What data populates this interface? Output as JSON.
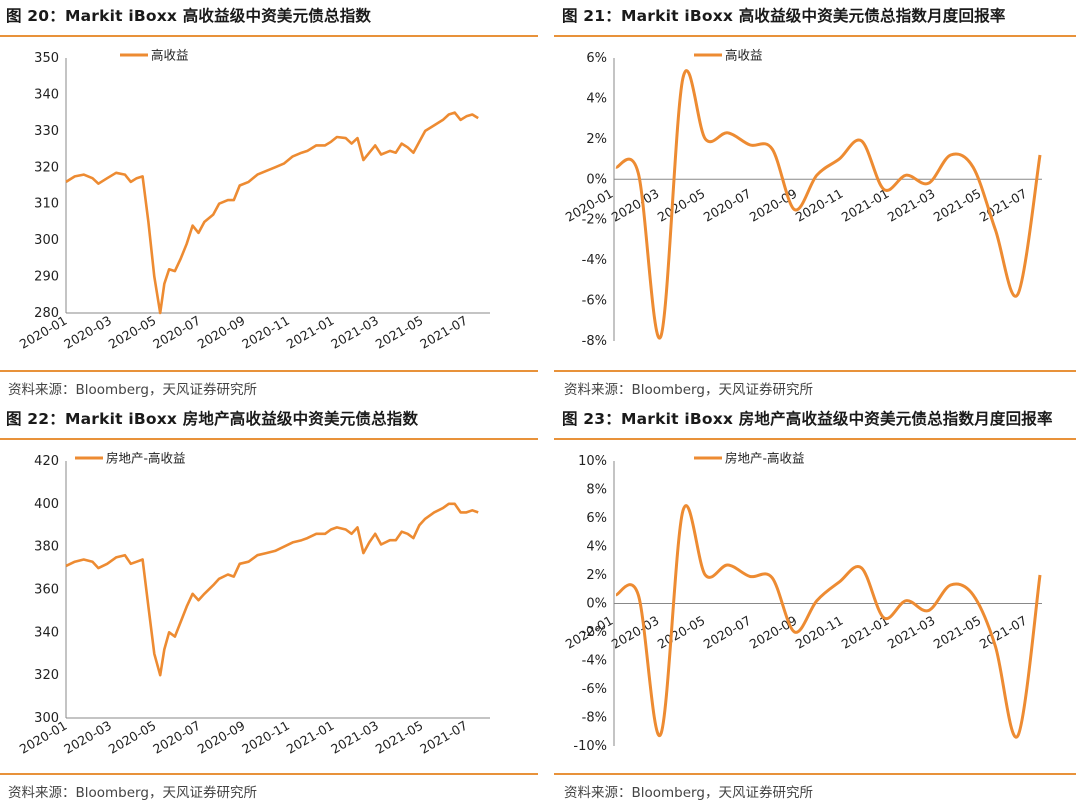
{
  "panels": [
    {
      "title": "图 20：Markit iBoxx 高收益级中资美元债总指数",
      "source": "资料来源：Bloomberg，天风证券研究所"
    },
    {
      "title": "图 21：Markit iBoxx 高收益级中资美元债总指数月度回报率",
      "source": "资料来源：Bloomberg，天风证券研究所"
    },
    {
      "title": "图 22：Markit iBoxx 房地产高收益级中资美元债总指数",
      "source": "资料来源：Bloomberg，天风证券研究所"
    },
    {
      "title": "图 23：Markit iBoxx 房地产高收益级中资美元债总指数月度回报率",
      "source": "资料来源：Bloomberg，天风证券研究所"
    }
  ],
  "chart_data": [
    {
      "type": "line",
      "series": [
        {
          "name": "高收益",
          "color": "#ed8b32"
        }
      ],
      "x_ticks": [
        "2020-01",
        "2020-03",
        "2020-05",
        "2020-07",
        "2020-09",
        "2020-11",
        "2021-01",
        "2021-03",
        "2021-05",
        "2021-07"
      ],
      "y_ticks": [
        "280",
        "290",
        "300",
        "310",
        "320",
        "330",
        "340",
        "350"
      ],
      "ylim": [
        280,
        350
      ],
      "xlim": [
        0,
        7.2
      ],
      "points": [
        [
          0,
          316
        ],
        [
          0.15,
          317.5
        ],
        [
          0.3,
          318
        ],
        [
          0.45,
          317
        ],
        [
          0.55,
          315.5
        ],
        [
          0.7,
          317
        ],
        [
          0.85,
          318.5
        ],
        [
          1.0,
          318
        ],
        [
          1.1,
          316
        ],
        [
          1.2,
          317
        ],
        [
          1.3,
          317.5
        ],
        [
          1.4,
          305
        ],
        [
          1.5,
          290
        ],
        [
          1.6,
          280
        ],
        [
          1.67,
          288
        ],
        [
          1.75,
          292
        ],
        [
          1.85,
          291.5
        ],
        [
          1.95,
          295
        ],
        [
          2.05,
          299
        ],
        [
          2.15,
          304
        ],
        [
          2.25,
          302
        ],
        [
          2.35,
          305
        ],
        [
          2.5,
          307
        ],
        [
          2.6,
          310
        ],
        [
          2.75,
          311
        ],
        [
          2.85,
          311
        ],
        [
          2.95,
          315
        ],
        [
          3.1,
          316
        ],
        [
          3.25,
          318
        ],
        [
          3.4,
          319
        ],
        [
          3.55,
          320
        ],
        [
          3.7,
          321
        ],
        [
          3.85,
          323
        ],
        [
          4.0,
          324
        ],
        [
          4.1,
          324.5
        ],
        [
          4.25,
          326
        ],
        [
          4.4,
          326
        ],
        [
          4.5,
          327
        ],
        [
          4.6,
          328.3
        ],
        [
          4.75,
          328
        ],
        [
          4.85,
          326.5
        ],
        [
          4.95,
          328
        ],
        [
          5.05,
          322
        ],
        [
          5.15,
          324
        ],
        [
          5.25,
          326
        ],
        [
          5.35,
          323.5
        ],
        [
          5.5,
          324.5
        ],
        [
          5.6,
          324
        ],
        [
          5.7,
          326.5
        ],
        [
          5.8,
          325.5
        ],
        [
          5.9,
          324
        ],
        [
          6.0,
          327
        ],
        [
          6.1,
          330
        ],
        [
          6.25,
          331.5
        ],
        [
          6.4,
          333
        ],
        [
          6.5,
          334.5
        ],
        [
          6.6,
          335
        ],
        [
          6.7,
          333
        ],
        [
          6.8,
          334
        ],
        [
          6.9,
          334.5
        ],
        [
          7.0,
          333.5
        ]
      ]
    },
    {
      "type": "line",
      "series": [
        {
          "name": "高收益",
          "color": "#ed8b32"
        }
      ],
      "x_ticks": [
        "2020-01",
        "2020-03",
        "2020-05",
        "2020-07",
        "2020-09",
        "2020-11",
        "2021-01",
        "2021-03",
        "2021-05",
        "2021-07"
      ],
      "y_ticks": [
        "-8%",
        "-6%",
        "-4%",
        "-2%",
        "0%",
        "2%",
        "4%",
        "6%"
      ],
      "ylim": [
        -8,
        6
      ],
      "x": [
        0,
        1,
        2,
        3,
        4,
        5,
        6,
        7,
        8,
        9,
        10,
        11,
        12,
        13,
        14,
        15,
        16,
        17,
        18,
        19
      ],
      "values": [
        0.6,
        0.3,
        -7.8,
        5.0,
        2.0,
        2.3,
        1.7,
        1.5,
        -1.5,
        0.2,
        1.0,
        1.9,
        -0.5,
        0.2,
        -0.2,
        1.2,
        0.6,
        -2.5,
        -5.7,
        1.2
      ]
    },
    {
      "type": "line",
      "series": [
        {
          "name": "房地产-高收益",
          "color": "#ed8b32"
        }
      ],
      "x_ticks": [
        "2020-01",
        "2020-03",
        "2020-05",
        "2020-07",
        "2020-09",
        "2020-11",
        "2021-01",
        "2021-03",
        "2021-05",
        "2021-07"
      ],
      "y_ticks": [
        "300",
        "320",
        "340",
        "360",
        "380",
        "400",
        "420"
      ],
      "ylim": [
        300,
        420
      ],
      "xlim": [
        0,
        7.2
      ],
      "points": [
        [
          0,
          371
        ],
        [
          0.15,
          373
        ],
        [
          0.3,
          374
        ],
        [
          0.45,
          373
        ],
        [
          0.55,
          370
        ],
        [
          0.7,
          372
        ],
        [
          0.85,
          375
        ],
        [
          1.0,
          376
        ],
        [
          1.1,
          372
        ],
        [
          1.2,
          373
        ],
        [
          1.3,
          374
        ],
        [
          1.4,
          352
        ],
        [
          1.5,
          330
        ],
        [
          1.6,
          320
        ],
        [
          1.67,
          332
        ],
        [
          1.75,
          340
        ],
        [
          1.85,
          338
        ],
        [
          1.95,
          345
        ],
        [
          2.05,
          352
        ],
        [
          2.15,
          358
        ],
        [
          2.25,
          355
        ],
        [
          2.35,
          358
        ],
        [
          2.5,
          362
        ],
        [
          2.6,
          365
        ],
        [
          2.75,
          367
        ],
        [
          2.85,
          366
        ],
        [
          2.95,
          372
        ],
        [
          3.1,
          373
        ],
        [
          3.25,
          376
        ],
        [
          3.4,
          377
        ],
        [
          3.55,
          378
        ],
        [
          3.7,
          380
        ],
        [
          3.85,
          382
        ],
        [
          4.0,
          383
        ],
        [
          4.1,
          384
        ],
        [
          4.25,
          386
        ],
        [
          4.4,
          386
        ],
        [
          4.5,
          388
        ],
        [
          4.6,
          389
        ],
        [
          4.75,
          388
        ],
        [
          4.85,
          386
        ],
        [
          4.95,
          389
        ],
        [
          5.05,
          377
        ],
        [
          5.15,
          382
        ],
        [
          5.25,
          386
        ],
        [
          5.35,
          381
        ],
        [
          5.5,
          383
        ],
        [
          5.6,
          383
        ],
        [
          5.7,
          387
        ],
        [
          5.8,
          386
        ],
        [
          5.9,
          384
        ],
        [
          6.0,
          390
        ],
        [
          6.1,
          393
        ],
        [
          6.25,
          396
        ],
        [
          6.4,
          398
        ],
        [
          6.5,
          400
        ],
        [
          6.6,
          400
        ],
        [
          6.7,
          396
        ],
        [
          6.8,
          396
        ],
        [
          6.9,
          397
        ],
        [
          7.0,
          396
        ]
      ]
    },
    {
      "type": "line",
      "series": [
        {
          "name": "房地产-高收益",
          "color": "#ed8b32"
        }
      ],
      "x_ticks": [
        "2020-01",
        "2020-03",
        "2020-05",
        "2020-07",
        "2020-09",
        "2020-11",
        "2021-01",
        "2021-03",
        "2021-05",
        "2021-07"
      ],
      "y_ticks": [
        "-10%",
        "-8%",
        "-6%",
        "-4%",
        "-2%",
        "0%",
        "2%",
        "4%",
        "6%",
        "8%",
        "10%"
      ],
      "ylim": [
        -10,
        10
      ],
      "x": [
        0,
        1,
        2,
        3,
        4,
        5,
        6,
        7,
        8,
        9,
        10,
        11,
        12,
        13,
        14,
        15,
        16,
        17,
        18,
        19
      ],
      "values": [
        0.6,
        0.6,
        -9.2,
        6.5,
        2.0,
        2.7,
        1.9,
        1.8,
        -2.0,
        0.2,
        1.5,
        2.5,
        -1.0,
        0.2,
        -0.5,
        1.3,
        0.6,
        -3.0,
        -9.3,
        2.0
      ]
    }
  ]
}
